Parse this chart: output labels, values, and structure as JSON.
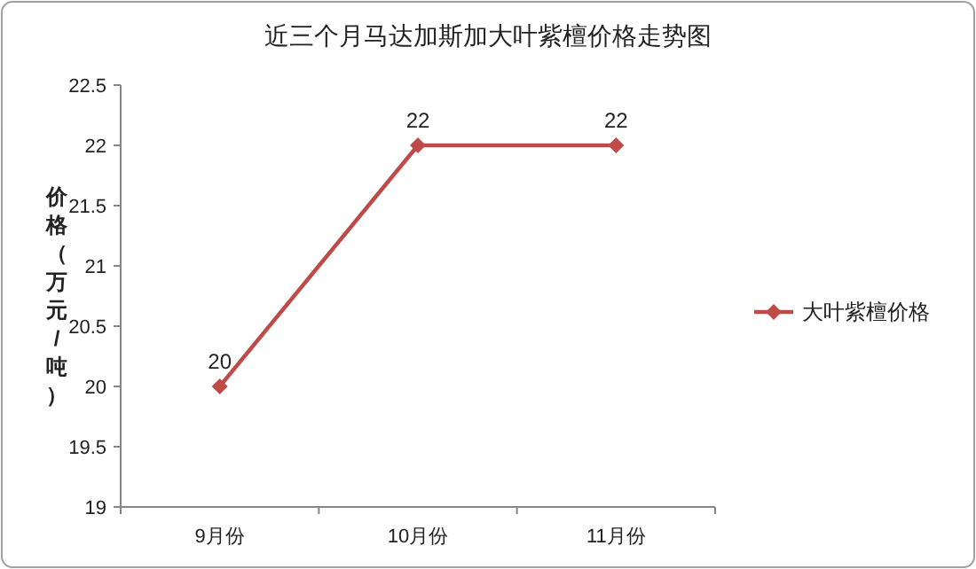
{
  "chart_data": {
    "type": "line",
    "title": "近三个月马达加斯加大叶紫檀价格走势图",
    "ylabel": "价格（万元/吨）",
    "categories": [
      "9月份",
      "10月份",
      "11月份"
    ],
    "series": [
      {
        "name": "大叶紫檀价格",
        "color": "#be4b48",
        "values": [
          20,
          22,
          22
        ]
      }
    ],
    "ylim": [
      19,
      22.5
    ],
    "yticks": [
      19,
      19.5,
      20,
      20.5,
      21,
      21.5,
      22,
      22.5
    ],
    "data_labels": true,
    "legend": "right",
    "marker": "diamond",
    "line_style": "solid",
    "grid": false
  }
}
